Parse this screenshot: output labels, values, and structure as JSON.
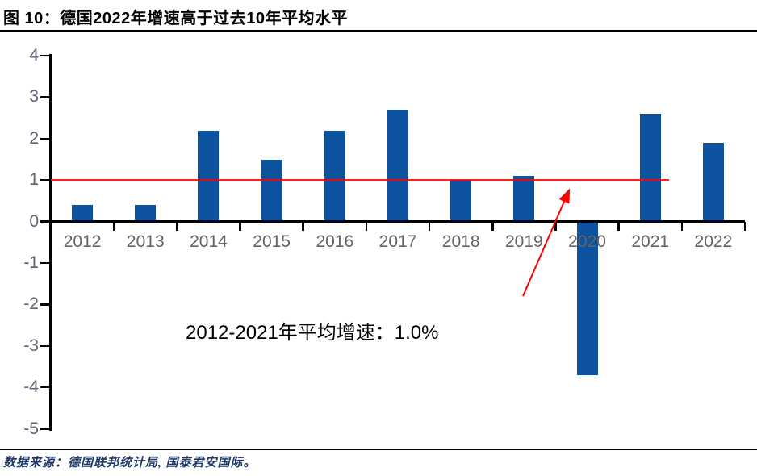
{
  "header": {
    "figure_label": "图 10",
    "title": "图 10：德国2022年增速高于过去10年平均水平"
  },
  "chart_data": {
    "type": "bar",
    "title": "图 10：德国2022年增速高于过去10年平均水平",
    "categories": [
      "2012",
      "2013",
      "2014",
      "2015",
      "2016",
      "2017",
      "2018",
      "2019",
      "2020",
      "2021",
      "2022"
    ],
    "values": [
      0.4,
      0.4,
      2.2,
      1.5,
      2.2,
      2.7,
      1.0,
      1.1,
      -3.7,
      2.6,
      1.9
    ],
    "value_unit": "percent",
    "xlabel": "",
    "ylabel": "",
    "ylim": [
      -5,
      4
    ],
    "yticks": [
      -5,
      -4,
      -3,
      -2,
      -1,
      0,
      1,
      2,
      3,
      4
    ],
    "grid": false,
    "legend": "none",
    "bar_color": "#0d529e",
    "axis_color": "#000000",
    "y_tick_label_color": "#5d6370",
    "x_tick_label_color": "#646464",
    "reference_line": {
      "value": 1.0,
      "color": "#ff0000"
    },
    "annotation": {
      "text": "2012-2021年平均增速：1.0%"
    }
  },
  "footer": {
    "source": "数据来源：德国联邦统计局, 国泰君安国际。"
  }
}
